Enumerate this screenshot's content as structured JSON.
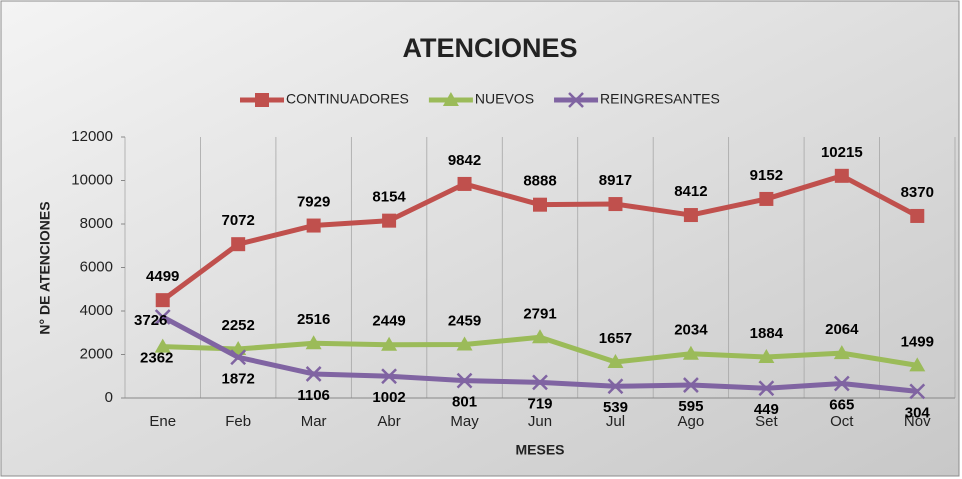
{
  "chart_data": {
    "type": "line",
    "title": "ATENCIONES",
    "x_label": "MESES",
    "y_label": "N° DE ATENCIONES",
    "categories": [
      "Ene",
      "Feb",
      "Mar",
      "Abr",
      "May",
      "Jun",
      "Jul",
      "Ago",
      "Set",
      "Oct",
      "Nov"
    ],
    "series": [
      {
        "name": "CONTINUADORES",
        "color": "#c0504d",
        "marker": "square",
        "values": [
          4499,
          7072,
          7929,
          8154,
          9842,
          8888,
          8917,
          8412,
          9152,
          10215,
          8370
        ]
      },
      {
        "name": "NUEVOS",
        "color": "#9bbb59",
        "marker": "triangle",
        "values": [
          2362,
          2252,
          2516,
          2449,
          2459,
          2791,
          1657,
          2034,
          1884,
          2064,
          1499
        ]
      },
      {
        "name": "REINGRESANTES",
        "color": "#8064a2",
        "marker": "x",
        "values": [
          3726,
          1872,
          1106,
          1002,
          801,
          719,
          539,
          595,
          449,
          665,
          304
        ]
      }
    ],
    "ylim": [
      0,
      12000
    ],
    "yticks": [
      0,
      2000,
      4000,
      6000,
      8000,
      10000,
      12000
    ],
    "legend": "top"
  }
}
